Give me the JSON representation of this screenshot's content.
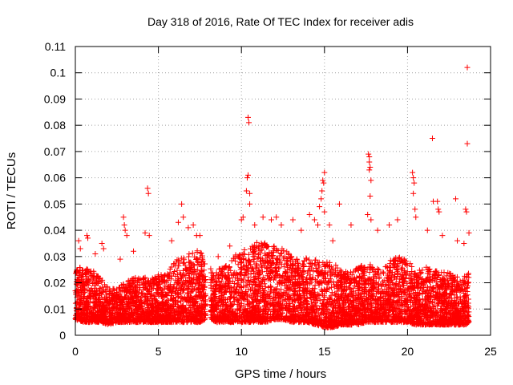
{
  "chart_data": {
    "type": "scatter",
    "title": "Day 318 of 2016, Rate Of TEC Index for receiver adis",
    "xlabel": "GPS time / hours",
    "ylabel": "ROTI / TECUs",
    "xlim": [
      0,
      25
    ],
    "ylim": [
      0,
      0.11
    ],
    "xticks": [
      0,
      5,
      10,
      15,
      20,
      25
    ],
    "xtick_labels": [
      "0",
      "5",
      "10",
      "15",
      "20",
      "25"
    ],
    "yticks": [
      0,
      0.01,
      0.02,
      0.03,
      0.04,
      0.05,
      0.06,
      0.07,
      0.08,
      0.09,
      0.1,
      0.11
    ],
    "ytick_labels": [
      "0",
      "0.01",
      "0.02",
      "0.03",
      "0.04",
      "0.05",
      "0.06",
      "0.07",
      "0.08",
      "0.09",
      "0.1",
      "0.11"
    ],
    "grid": true,
    "marker": "+",
    "color": "#ff0000",
    "series": [
      {
        "name": "ROTI",
        "envelope": {
          "hours": [
            0.0,
            0.5,
            1.0,
            1.5,
            2.0,
            2.5,
            3.0,
            3.5,
            4.0,
            4.5,
            5.0,
            5.5,
            6.0,
            6.5,
            7.0,
            7.5,
            7.8,
            8.2,
            8.5,
            9.0,
            9.5,
            10.0,
            10.5,
            11.0,
            11.5,
            12.0,
            12.5,
            13.0,
            13.5,
            14.0,
            14.5,
            15.0,
            15.5,
            16.0,
            16.5,
            17.0,
            17.5,
            18.0,
            18.5,
            19.0,
            19.5,
            20.0,
            20.5,
            21.0,
            21.5,
            22.0,
            22.5,
            23.0,
            23.5,
            23.7
          ],
          "low": [
            0.006,
            0.005,
            0.005,
            0.005,
            0.004,
            0.005,
            0.005,
            0.005,
            0.005,
            0.005,
            0.005,
            0.005,
            0.005,
            0.005,
            0.005,
            0.005,
            0.006,
            0.006,
            0.005,
            0.005,
            0.005,
            0.005,
            0.005,
            0.005,
            0.005,
            0.006,
            0.006,
            0.005,
            0.005,
            0.005,
            0.004,
            0.003,
            0.003,
            0.004,
            0.004,
            0.004,
            0.005,
            0.005,
            0.005,
            0.005,
            0.005,
            0.005,
            0.004,
            0.004,
            0.004,
            0.004,
            0.004,
            0.004,
            0.004,
            0.005
          ],
          "high": [
            0.025,
            0.027,
            0.025,
            0.022,
            0.018,
            0.018,
            0.02,
            0.022,
            0.022,
            0.022,
            0.023,
            0.024,
            0.028,
            0.031,
            0.031,
            0.033,
            0.028,
            0.025,
            0.025,
            0.026,
            0.03,
            0.032,
            0.034,
            0.036,
            0.035,
            0.034,
            0.033,
            0.031,
            0.028,
            0.03,
            0.029,
            0.029,
            0.028,
            0.025,
            0.024,
            0.026,
            0.028,
            0.026,
            0.025,
            0.029,
            0.03,
            0.029,
            0.024,
            0.026,
            0.026,
            0.024,
            0.024,
            0.023,
            0.023,
            0.024
          ],
          "count": 6000
        },
        "outliers": [
          {
            "x": 0.2,
            "y": 0.036
          },
          {
            "x": 0.3,
            "y": 0.033
          },
          {
            "x": 0.7,
            "y": 0.038
          },
          {
            "x": 0.75,
            "y": 0.037
          },
          {
            "x": 1.2,
            "y": 0.031
          },
          {
            "x": 1.6,
            "y": 0.035
          },
          {
            "x": 1.7,
            "y": 0.033
          },
          {
            "x": 2.7,
            "y": 0.029
          },
          {
            "x": 2.9,
            "y": 0.045
          },
          {
            "x": 2.95,
            "y": 0.042
          },
          {
            "x": 3.0,
            "y": 0.04
          },
          {
            "x": 3.1,
            "y": 0.038
          },
          {
            "x": 3.5,
            "y": 0.032
          },
          {
            "x": 4.2,
            "y": 0.039
          },
          {
            "x": 4.35,
            "y": 0.056
          },
          {
            "x": 4.4,
            "y": 0.054
          },
          {
            "x": 4.45,
            "y": 0.038
          },
          {
            "x": 5.8,
            "y": 0.036
          },
          {
            "x": 6.2,
            "y": 0.043
          },
          {
            "x": 6.4,
            "y": 0.05
          },
          {
            "x": 6.5,
            "y": 0.045
          },
          {
            "x": 6.8,
            "y": 0.041
          },
          {
            "x": 7.1,
            "y": 0.042
          },
          {
            "x": 7.3,
            "y": 0.038
          },
          {
            "x": 7.5,
            "y": 0.038
          },
          {
            "x": 8.6,
            "y": 0.03
          },
          {
            "x": 9.3,
            "y": 0.034
          },
          {
            "x": 10.0,
            "y": 0.044
          },
          {
            "x": 10.1,
            "y": 0.045
          },
          {
            "x": 10.3,
            "y": 0.055
          },
          {
            "x": 10.35,
            "y": 0.06
          },
          {
            "x": 10.4,
            "y": 0.061
          },
          {
            "x": 10.4,
            "y": 0.083
          },
          {
            "x": 10.45,
            "y": 0.081
          },
          {
            "x": 10.5,
            "y": 0.054
          },
          {
            "x": 10.5,
            "y": 0.05
          },
          {
            "x": 10.8,
            "y": 0.042
          },
          {
            "x": 11.3,
            "y": 0.045
          },
          {
            "x": 11.8,
            "y": 0.044
          },
          {
            "x": 12.1,
            "y": 0.045
          },
          {
            "x": 12.4,
            "y": 0.042
          },
          {
            "x": 13.1,
            "y": 0.044
          },
          {
            "x": 13.6,
            "y": 0.04
          },
          {
            "x": 14.1,
            "y": 0.046
          },
          {
            "x": 14.4,
            "y": 0.044
          },
          {
            "x": 14.6,
            "y": 0.042
          },
          {
            "x": 14.7,
            "y": 0.049
          },
          {
            "x": 14.8,
            "y": 0.052
          },
          {
            "x": 14.85,
            "y": 0.055
          },
          {
            "x": 14.9,
            "y": 0.059
          },
          {
            "x": 14.95,
            "y": 0.058
          },
          {
            "x": 15.0,
            "y": 0.062
          },
          {
            "x": 15.0,
            "y": 0.047
          },
          {
            "x": 15.3,
            "y": 0.042
          },
          {
            "x": 15.5,
            "y": 0.036
          },
          {
            "x": 15.9,
            "y": 0.05
          },
          {
            "x": 16.6,
            "y": 0.042
          },
          {
            "x": 17.6,
            "y": 0.046
          },
          {
            "x": 17.65,
            "y": 0.069
          },
          {
            "x": 17.7,
            "y": 0.068
          },
          {
            "x": 17.7,
            "y": 0.066
          },
          {
            "x": 17.75,
            "y": 0.064
          },
          {
            "x": 17.7,
            "y": 0.063
          },
          {
            "x": 17.8,
            "y": 0.059
          },
          {
            "x": 17.75,
            "y": 0.053
          },
          {
            "x": 17.8,
            "y": 0.044
          },
          {
            "x": 18.2,
            "y": 0.04
          },
          {
            "x": 18.9,
            "y": 0.042
          },
          {
            "x": 19.4,
            "y": 0.044
          },
          {
            "x": 20.3,
            "y": 0.062
          },
          {
            "x": 20.35,
            "y": 0.06
          },
          {
            "x": 20.4,
            "y": 0.058
          },
          {
            "x": 20.35,
            "y": 0.054
          },
          {
            "x": 20.45,
            "y": 0.048
          },
          {
            "x": 20.5,
            "y": 0.045
          },
          {
            "x": 21.2,
            "y": 0.04
          },
          {
            "x": 21.5,
            "y": 0.075
          },
          {
            "x": 21.55,
            "y": 0.051
          },
          {
            "x": 21.8,
            "y": 0.051
          },
          {
            "x": 21.85,
            "y": 0.048
          },
          {
            "x": 21.9,
            "y": 0.047
          },
          {
            "x": 22.1,
            "y": 0.038
          },
          {
            "x": 22.9,
            "y": 0.052
          },
          {
            "x": 23.0,
            "y": 0.036
          },
          {
            "x": 23.4,
            "y": 0.035
          },
          {
            "x": 23.5,
            "y": 0.048
          },
          {
            "x": 23.55,
            "y": 0.047
          },
          {
            "x": 23.6,
            "y": 0.073
          },
          {
            "x": 23.6,
            "y": 0.102
          },
          {
            "x": 23.7,
            "y": 0.039
          }
        ]
      }
    ]
  }
}
